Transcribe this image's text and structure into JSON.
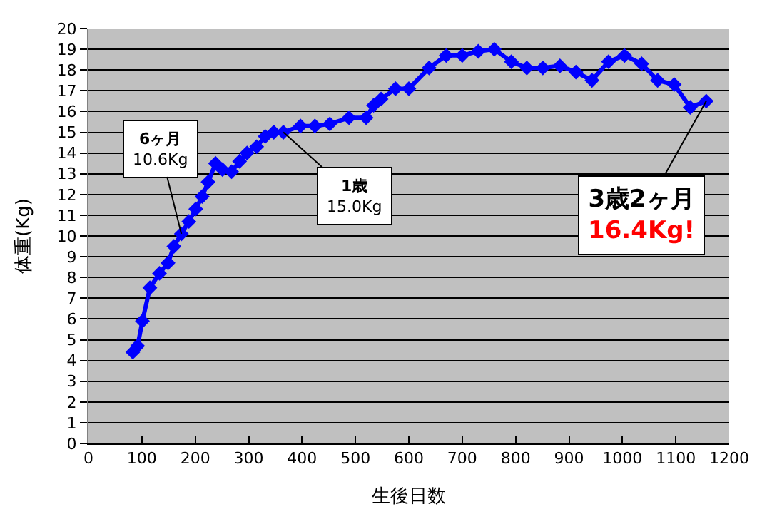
{
  "chart_data": {
    "type": "line",
    "xlabel": "生後日数",
    "ylabel": "体重(Kg)",
    "xlim": [
      0,
      1200
    ],
    "xticks": [
      0,
      100,
      200,
      300,
      400,
      500,
      600,
      700,
      800,
      900,
      1000,
      1100,
      1200
    ],
    "ylim": [
      0,
      20
    ],
    "yticks": [
      0,
      1,
      2,
      3,
      4,
      5,
      6,
      7,
      8,
      9,
      10,
      11,
      12,
      13,
      14,
      15,
      16,
      17,
      18,
      19,
      20
    ],
    "grid": "y",
    "marker": "diamond",
    "line_style": "solid",
    "series": [
      {
        "color": "#0000ff",
        "x": [
          83,
          92,
          101,
          115,
          133,
          149,
          160,
          174,
          188,
          201,
          213,
          224,
          238,
          251,
          268,
          283,
          297,
          315,
          331,
          347,
          365,
          397,
          424,
          452,
          488,
          520,
          534,
          548,
          575,
          600,
          638,
          670,
          700,
          730,
          760,
          792,
          821,
          851,
          883,
          913,
          943,
          974,
          1004,
          1036,
          1066,
          1097,
          1127,
          1157
        ],
        "values": [
          4.4,
          4.7,
          5.9,
          7.5,
          8.2,
          8.7,
          9.5,
          10.1,
          10.7,
          11.3,
          11.9,
          12.6,
          13.5,
          13.2,
          13.1,
          13.6,
          14.0,
          14.3,
          14.8,
          15.0,
          15.0,
          15.3,
          15.3,
          15.4,
          15.7,
          15.7,
          16.3,
          16.6,
          17.1,
          17.1,
          18.1,
          18.7,
          18.7,
          18.9,
          19.0,
          18.4,
          18.1,
          18.1,
          18.2,
          17.9,
          17.5,
          18.4,
          18.7,
          18.3,
          17.5,
          17.3,
          16.2,
          16.5
        ]
      }
    ],
    "annotations": [
      {
        "text": "6ヶ月\n10.6Kg",
        "x": 174,
        "y": 10.1
      },
      {
        "text": "1歳\n15.0Kg",
        "x": 365,
        "y": 15.0
      },
      {
        "text": "3歳2ヶ月\n16.4Kg!",
        "x": 1157,
        "y": 16.5
      }
    ]
  }
}
